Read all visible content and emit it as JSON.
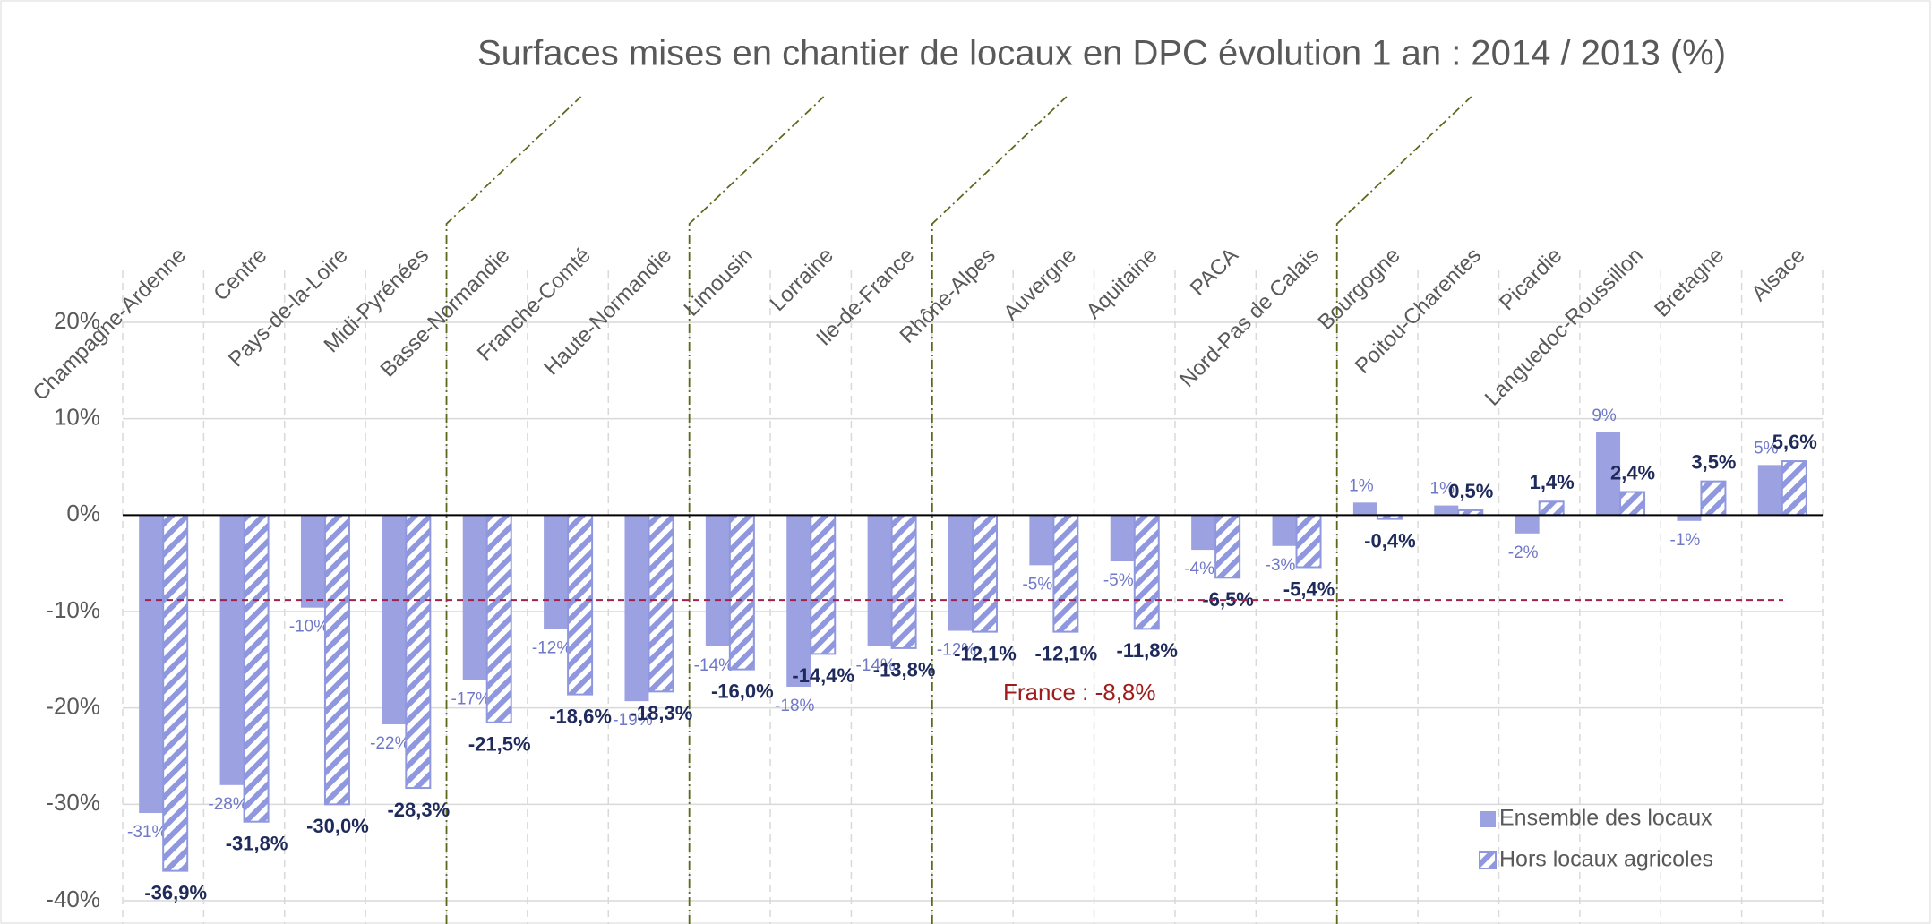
{
  "chart_data": {
    "type": "bar",
    "title": "Surfaces mises en chantier de locaux en DPC évolution 1 an : 2014 / 2013 (%)",
    "categories": [
      "Champagne-Ardenne",
      "Centre",
      "Pays-de-la-Loire",
      "Midi-Pyrénées",
      "Basse-Normandie",
      "Franche-Comté",
      "Haute-Normandie",
      "Limousin",
      "Lorraine",
      "Ile-de-France",
      "Rhône-Alpes",
      "Auvergne",
      "Aquitaine",
      "PACA",
      "Nord-Pas de Calais",
      "Bourgogne",
      "Poitou-Charentes",
      "Picardie",
      "Languedoc-Roussillon",
      "Bretagne",
      "Alsace"
    ],
    "series": [
      {
        "name": "Ensemble des locaux",
        "color": "#9ba1e1",
        "pattern": "solid",
        "values": [
          -30.9,
          -28.0,
          -9.6,
          -21.7,
          -17.1,
          -11.8,
          -19.3,
          -13.6,
          -17.8,
          -13.6,
          -12.0,
          -5.2,
          -4.8,
          -3.6,
          -3.2,
          1.3,
          1.0,
          -1.9,
          8.6,
          -0.6,
          5.2
        ],
        "value_labels": [
          "-31%",
          "-28%",
          "-10%",
          "-22%",
          "-17%",
          "-12%",
          "-19%",
          "-14%",
          "-18%",
          "-14%",
          "-12%",
          "-5%",
          "-5%",
          "-4%",
          "-3%",
          "1%",
          "1%",
          "-2%",
          "9%",
          "-1%",
          "5%"
        ]
      },
      {
        "name": "Hors locaux agricoles",
        "color": "#8f98de",
        "pattern": "hatched",
        "values": [
          -36.9,
          -31.8,
          -30.0,
          -28.3,
          -21.5,
          -18.6,
          -18.3,
          -16.0,
          -14.4,
          -13.8,
          -12.1,
          -12.1,
          -11.8,
          -6.5,
          -5.4,
          -0.4,
          0.5,
          1.4,
          2.4,
          3.5,
          5.6
        ],
        "value_labels": [
          "-36,9%",
          "-31,8%",
          "-30,0%",
          "-28,3%",
          "-21,5%",
          "-18,6%",
          "-18,3%",
          "-16,0%",
          "-14,4%",
          "-13,8%",
          "-12,1%",
          "-12,1%",
          "-11,8%",
          "-6,5%",
          "-5,4%",
          "-0,4%",
          "0,5%",
          "1,4%",
          "2,4%",
          "3,5%",
          "5,6%"
        ]
      }
    ],
    "reference_line": {
      "value": -8.8,
      "label": "France : -8,8%",
      "color": "#a0224a"
    },
    "ylim": [
      -40,
      20
    ],
    "yticks": [
      {
        "value": -40,
        "label": "-40%"
      },
      {
        "value": -30,
        "label": "-30%"
      },
      {
        "value": -20,
        "label": "-20%"
      },
      {
        "value": -10,
        "label": "-10%"
      },
      {
        "value": 0,
        "label": "0%"
      },
      {
        "value": 10,
        "label": "10%"
      },
      {
        "value": 20,
        "label": "20%"
      }
    ],
    "grid": true,
    "legend": "lower right"
  }
}
